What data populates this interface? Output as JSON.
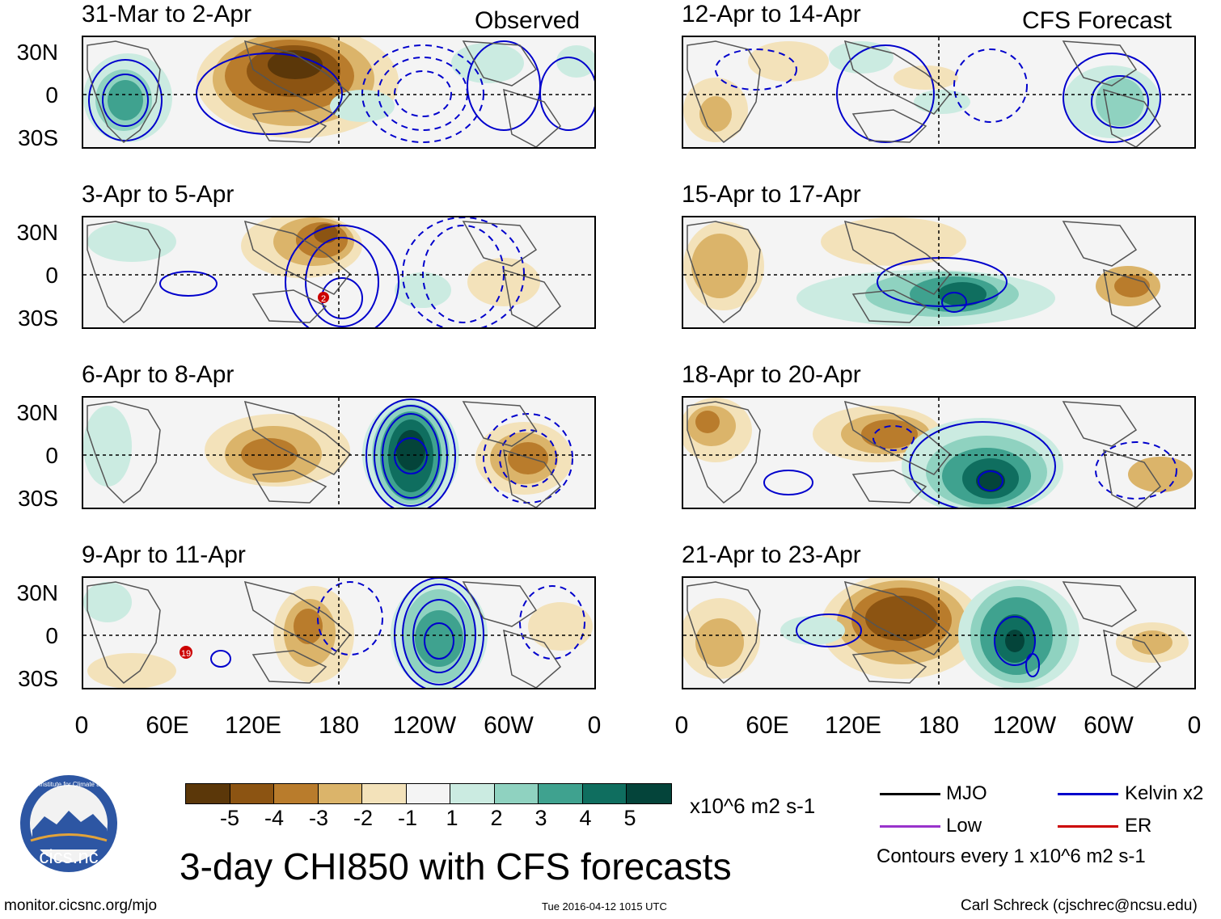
{
  "panels": [
    {
      "title": "31-Mar to 2-Apr",
      "tag": "Observed",
      "col": 0,
      "row": 0
    },
    {
      "title": "3-Apr to 5-Apr",
      "tag": "",
      "col": 0,
      "row": 1
    },
    {
      "title": "6-Apr to 8-Apr",
      "tag": "",
      "col": 0,
      "row": 2
    },
    {
      "title": "9-Apr to 11-Apr",
      "tag": "",
      "col": 0,
      "row": 3
    },
    {
      "title": "12-Apr to 14-Apr",
      "tag": "CFS Forecast",
      "col": 1,
      "row": 0
    },
    {
      "title": "15-Apr to 17-Apr",
      "tag": "",
      "col": 1,
      "row": 1
    },
    {
      "title": "18-Apr to 20-Apr",
      "tag": "",
      "col": 1,
      "row": 2
    },
    {
      "title": "21-Apr to 23-Apr",
      "tag": "",
      "col": 1,
      "row": 3
    }
  ],
  "lat_labels": [
    "30N",
    "0",
    "30S"
  ],
  "lon_labels": [
    "0",
    "60E",
    "120E",
    "180",
    "120W",
    "60W",
    "0"
  ],
  "colorbar": {
    "colors": [
      "#5b3709",
      "#8c5412",
      "#b97c2c",
      "#dbb46a",
      "#f3e2ba",
      "#f4f4f4",
      "#cbebe1",
      "#8fd2c0",
      "#3fa28f",
      "#0f6e5f",
      "#04443a"
    ],
    "labels": [
      "-5",
      "-4",
      "-3",
      "-2",
      "-1",
      "1",
      "2",
      "3",
      "4",
      "5"
    ],
    "units": "x10^6 m2 s-1"
  },
  "legend": {
    "items": [
      {
        "label": "MJO",
        "color": "#000000"
      },
      {
        "label": "Kelvin x2",
        "color": "#0000cc"
      },
      {
        "label": "Low",
        "color": "#9933cc"
      },
      {
        "label": "ER",
        "color": "#cc0000"
      }
    ],
    "contour_note": "Contours every 1 x10^6 m2 s-1"
  },
  "markers": {
    "p1": "2",
    "p3": "19"
  },
  "title": "3-day CHI850 with CFS forecasts",
  "logo_text": "cics.nc",
  "logo_ring_text": "Cooperative Institute for Climate and Satellites",
  "footer": {
    "url": "monitor.cicsnc.org/mjo",
    "timestamp": "Tue 2016-04-12 1015 UTC",
    "credit": "Carl Schreck (cjschrec@ncsu.edu)"
  },
  "colors": {
    "kelvin": "#0000cc",
    "land": "#555555",
    "frame": "#000000"
  }
}
